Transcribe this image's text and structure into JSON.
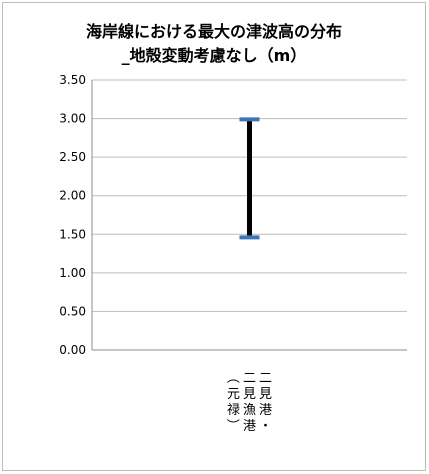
{
  "chart_data": {
    "type": "range",
    "title": [
      "海岸線における最大の津波高の分布",
      "_地殻変動考慮なし（m）"
    ],
    "categories": [
      "二見港・二見漁港（元禄）"
    ],
    "category_label_columns": [
      "二見港・",
      "二見漁港",
      "（元禄）"
    ],
    "ranges": [
      {
        "category": "二見港・二見漁港（元禄）",
        "low": 1.46,
        "high": 2.99
      }
    ],
    "ylim": [
      0,
      3.5
    ],
    "yticks": [
      "0.00",
      "0.50",
      "1.00",
      "1.50",
      "2.00",
      "2.50",
      "3.00",
      "3.50"
    ],
    "grid": true,
    "colors": {
      "range_bar": "#000000",
      "marker": "#3a76b7",
      "grid": "#bdbdbd"
    }
  }
}
